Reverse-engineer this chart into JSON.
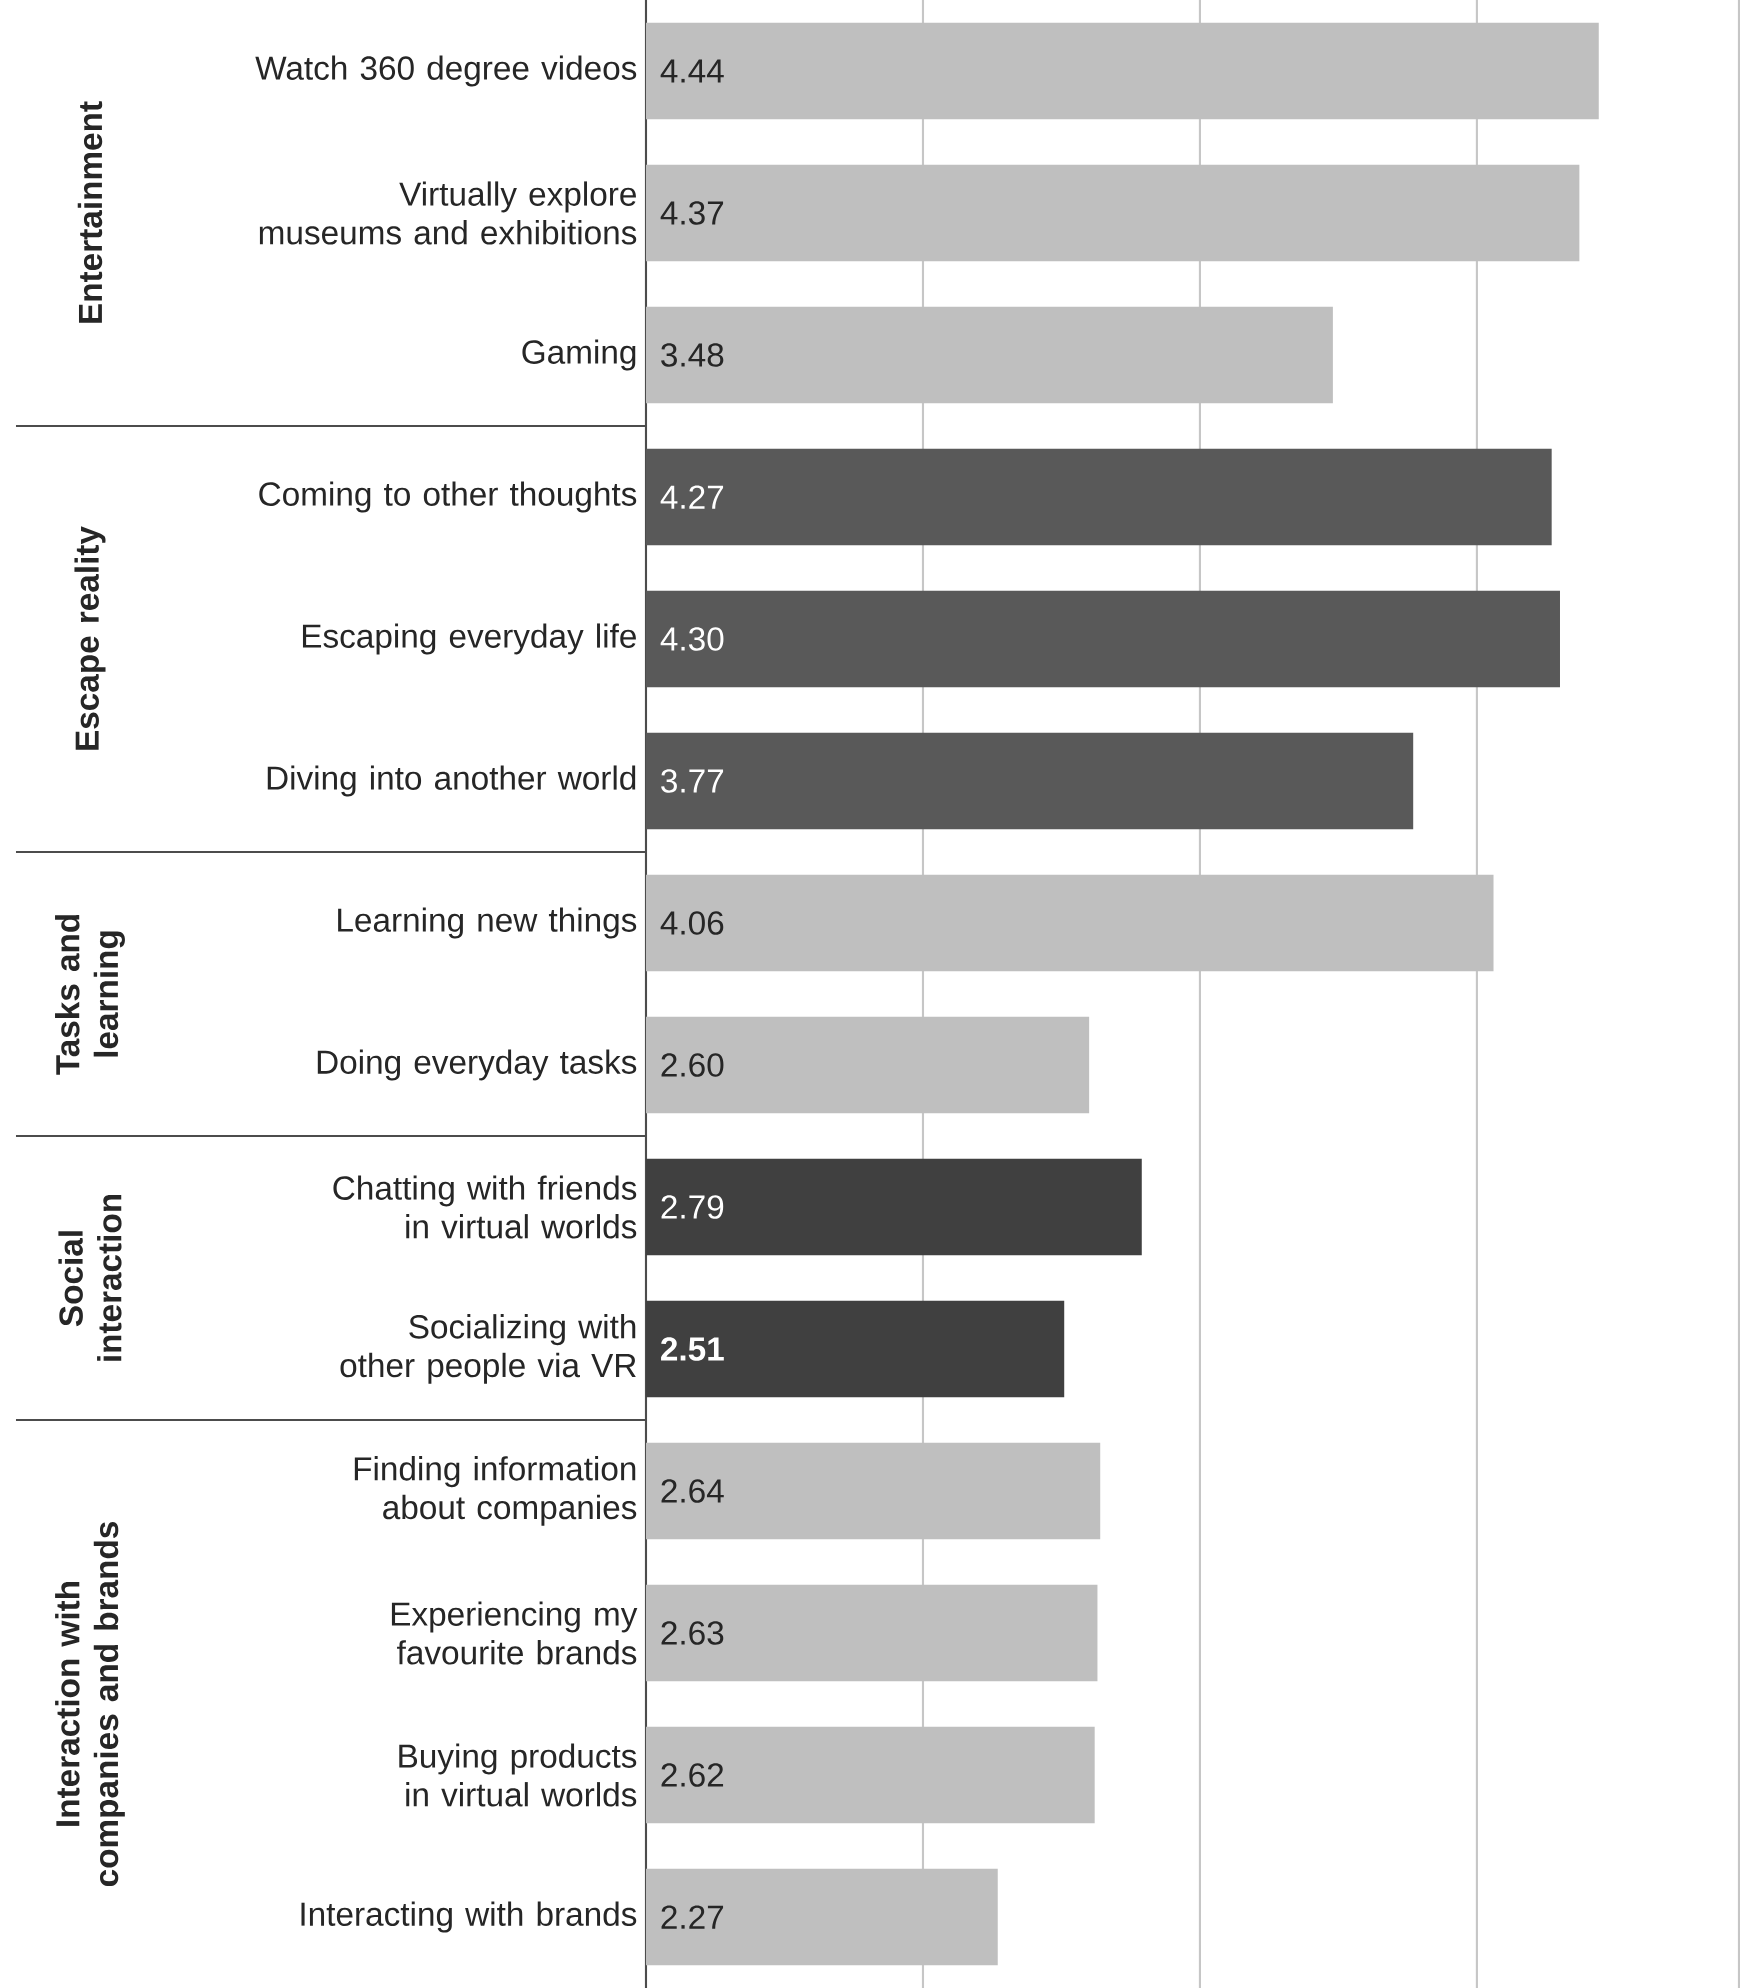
{
  "chart_data": {
    "type": "bar",
    "orientation": "horizontal",
    "categories": [
      "Watch 360 degree videos",
      "Virtually explore museums and exhibitions",
      "Gaming",
      "Coming to other thoughts",
      "Escaping everyday life",
      "Diving into another world",
      "Learning new things",
      "Doing everyday tasks",
      "Chatting with friends in virtual worlds",
      "Socializing with other people via VR",
      "Finding information about companies",
      "Experiencing my favourite brands",
      "Buying products in virtual worlds",
      "Interacting with brands"
    ],
    "values": [
      4.44,
      4.37,
      3.48,
      4.27,
      4.3,
      3.77,
      4.06,
      2.6,
      2.79,
      2.51,
      2.64,
      2.63,
      2.62,
      2.27
    ],
    "value_labels": [
      "4.44",
      "4.37",
      "3.48",
      "4.27",
      "4.30",
      "3.77",
      "4.06",
      "2.60",
      "2.79",
      "**2.51**",
      "2.64",
      "2.63",
      "2.62",
      "2.27"
    ],
    "colors": [
      "#bfbfbf",
      "#bfbfbf",
      "#bfbfbf",
      "#595959",
      "#595959",
      "#595959",
      "#bfbfbf",
      "#bfbfbf",
      "#404040",
      "#404040",
      "#bfbfbf",
      "#bfbfbf",
      "#bfbfbf",
      "#bfbfbf"
    ],
    "annotations": [
      "Entertainment",
      "Escape reality",
      "Tasks and learning",
      "Social interaction",
      "Interaction with companies and brands"
    ],
    "xlim": [
      1,
      4.95
    ],
    "xticks": [
      {
        "value": 2,
        "label": null
      },
      {
        "value": 3,
        "label": null
      },
      {
        "value": 4,
        "label": null
      }
    ],
    "grid": "x",
    "tick_labels": "y"
  }
}
